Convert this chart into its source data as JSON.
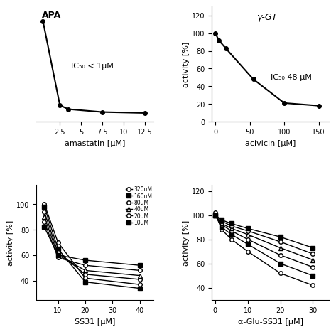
{
  "panel_A": {
    "title": "APA",
    "ic50_text": "IC₅₀ < 1μM",
    "xlabel": "amastatin [μM]",
    "x": [
      0.5,
      2.5,
      3.5,
      7.5,
      12.5
    ],
    "y": [
      100,
      12,
      8,
      5,
      4
    ],
    "xlim": [
      -0.3,
      13.5
    ],
    "ylim": [
      -5,
      115
    ],
    "xticks": [
      2.5,
      5,
      7.5,
      10,
      12.5
    ],
    "yticks": []
  },
  "panel_B": {
    "title": "γ-GT",
    "ic50_text": "IC₅₀ 48 μM",
    "xlabel": "acivicin [μM]",
    "ylabel": "activity [%]",
    "x": [
      0,
      5,
      15,
      55,
      100,
      150
    ],
    "y": [
      100,
      92,
      83,
      48,
      21,
      18
    ],
    "xlim": [
      -5,
      165
    ],
    "ylim": [
      0,
      130
    ],
    "yticks": [
      0,
      20,
      40,
      60,
      80,
      100,
      120
    ],
    "xticks": [
      0,
      50,
      100,
      150
    ]
  },
  "panel_C": {
    "xlabel": "SS31 [μM]",
    "ylabel": "activity [%]",
    "x": [
      5,
      10,
      20,
      40
    ],
    "xlim": [
      2,
      45
    ],
    "ylim": [
      25,
      115
    ],
    "xticks": [
      10,
      20,
      30,
      40
    ],
    "yticks": [
      40,
      60,
      80,
      100
    ],
    "series": {
      "320uM": {
        "y": [
          100,
          70,
          42,
          37
        ]
      },
      "160uM": {
        "y": [
          98,
          65,
          39,
          34
        ]
      },
      "80uM": {
        "y": [
          94,
          62,
          45,
          41
        ]
      },
      "40uM": {
        "y": [
          90,
          60,
          48,
          44
        ]
      },
      "20uM": {
        "y": [
          86,
          58,
          52,
          48
        ]
      },
      "10uM": {
        "y": [
          82,
          60,
          56,
          52
        ]
      }
    },
    "legend_order": [
      "320uM",
      "160uM",
      "80uM",
      "40uM",
      "20uM",
      "10uM"
    ],
    "markers": {
      "320uM": "o",
      "160uM": "s",
      "80uM": "o",
      "40uM": "^",
      "20uM": "o",
      "10uM": "s"
    },
    "filled": {
      "320uM": false,
      "160uM": true,
      "80uM": false,
      "40uM": false,
      "20uM": false,
      "10uM": true
    }
  },
  "panel_D": {
    "xlabel": "α-Glu-SS31 [μM]",
    "ylabel": "activity [%]",
    "x": [
      0,
      2,
      5,
      10,
      20,
      30
    ],
    "xlim": [
      -1,
      35
    ],
    "ylim": [
      30,
      125
    ],
    "xticks": [
      0,
      10,
      20,
      30
    ],
    "yticks": [
      40,
      60,
      80,
      100,
      120
    ],
    "series": {
      "320uM": {
        "y": [
          102,
          88,
          80,
          70,
          52,
          42
        ]
      },
      "160uM": {
        "y": [
          100,
          90,
          84,
          76,
          60,
          50
        ]
      },
      "80uM": {
        "y": [
          100,
          92,
          87,
          80,
          67,
          57
        ]
      },
      "40uM": {
        "y": [
          100,
          93,
          89,
          84,
          73,
          63
        ]
      },
      "20uM": {
        "y": [
          100,
          95,
          91,
          87,
          78,
          68
        ]
      },
      "10uM": {
        "y": [
          100,
          96,
          93,
          89,
          82,
          73
        ]
      }
    },
    "legend_order": [
      "320uM",
      "160uM",
      "80uM",
      "40uM",
      "20uM",
      "10uM"
    ],
    "markers": {
      "320uM": "o",
      "160uM": "s",
      "80uM": "o",
      "40uM": "^",
      "20uM": "o",
      "10uM": "s"
    },
    "filled": {
      "320uM": false,
      "160uM": true,
      "80uM": false,
      "40uM": false,
      "20uM": false,
      "10uM": true
    }
  },
  "figure_bg": "#ffffff",
  "line_color": "black",
  "marker_size": 4,
  "font_size": 8
}
